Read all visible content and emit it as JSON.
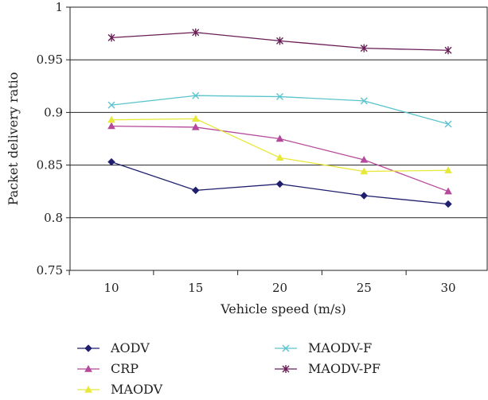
{
  "chart_data": {
    "type": "line",
    "title": "",
    "xlabel": "Vehicle speed (m/s)",
    "ylabel": "Packet delivery ratio",
    "x": [
      10,
      15,
      20,
      25,
      30
    ],
    "x_tick_labels": [
      "10",
      "15",
      "20",
      "25",
      "30"
    ],
    "ylim": [
      0.75,
      1
    ],
    "y_ticks": [
      0.75,
      0.8,
      0.85,
      0.9,
      0.95,
      1
    ],
    "y_tick_labels": [
      "0.75",
      "0.8",
      "0.85",
      "0.9",
      "0.95",
      "1"
    ],
    "grid": "horizontal",
    "legend_position": "bottom",
    "series": [
      {
        "name": "AODV",
        "values": [
          0.853,
          0.826,
          0.832,
          0.821,
          0.813
        ],
        "color": "#1f1f6e",
        "marker": "diamond"
      },
      {
        "name": "CRP",
        "values": [
          0.887,
          0.886,
          0.875,
          0.855,
          0.825
        ],
        "color": "#b5499b",
        "marker": "triangle"
      },
      {
        "name": "MAODV",
        "values": [
          0.893,
          0.894,
          0.857,
          0.844,
          0.845
        ],
        "color": "#e8e83a",
        "marker": "triangle"
      },
      {
        "name": "MAODV-F",
        "values": [
          0.907,
          0.916,
          0.915,
          0.911,
          0.889
        ],
        "color": "#5bc4cc",
        "marker": "x"
      },
      {
        "name": "MAODV-PF",
        "values": [
          0.971,
          0.976,
          0.968,
          0.961,
          0.959
        ],
        "color": "#6a1d57",
        "marker": "star"
      }
    ]
  }
}
